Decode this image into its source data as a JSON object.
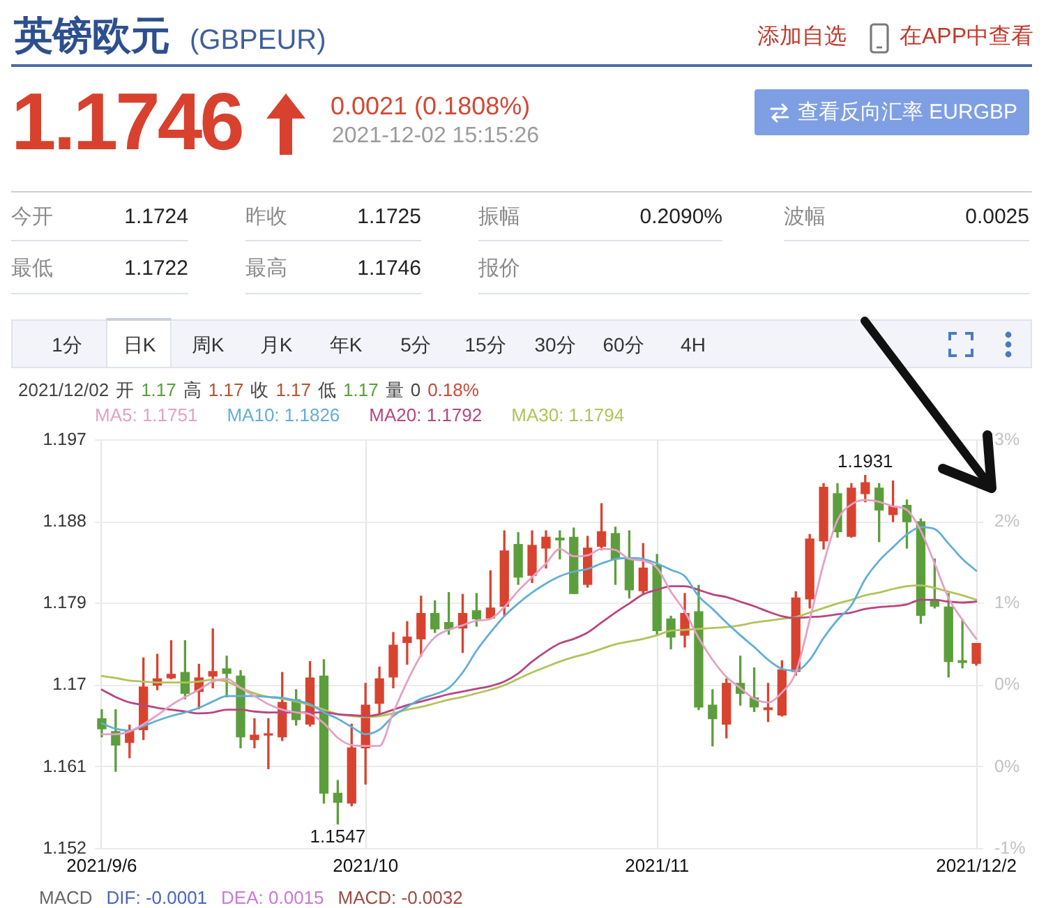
{
  "chart_data": {
    "type": "candlestick",
    "title": "英镑欧元",
    "subtitle": "(GBPEUR)",
    "categories": [
      "2021/9/6",
      null,
      null,
      null,
      null,
      null,
      null,
      null,
      null,
      null,
      null,
      null,
      null,
      null,
      null,
      null,
      null,
      null,
      null,
      "2021/10",
      null,
      null,
      null,
      null,
      null,
      null,
      null,
      null,
      null,
      null,
      null,
      null,
      null,
      null,
      null,
      null,
      null,
      null,
      null,
      null,
      "2021/11",
      null,
      null,
      null,
      null,
      null,
      null,
      null,
      null,
      null,
      null,
      null,
      null,
      null,
      null,
      null,
      null,
      null,
      null,
      null,
      null,
      null,
      null,
      "2021/12/2"
    ],
    "ohlc": [
      [
        1.1663,
        1.1673,
        1.1643,
        1.1652
      ],
      [
        1.1649,
        1.1673,
        1.1605,
        1.1634
      ],
      [
        1.1637,
        1.1656,
        1.162,
        1.165
      ],
      [
        1.1651,
        1.173,
        1.164,
        1.1698
      ],
      [
        1.17,
        1.1734,
        1.1695,
        1.1707
      ],
      [
        1.1708,
        1.1749,
        1.1707,
        1.1712
      ],
      [
        1.1714,
        1.1749,
        1.1685,
        1.1691
      ],
      [
        1.1693,
        1.1723,
        1.1674,
        1.1708
      ],
      [
        1.171,
        1.1762,
        1.1697,
        1.1715
      ],
      [
        1.1718,
        1.1732,
        1.1687,
        1.1713
      ],
      [
        1.171,
        1.1716,
        1.1631,
        1.1643
      ],
      [
        1.164,
        1.1663,
        1.1631,
        1.1645
      ],
      [
        1.1645,
        1.1663,
        1.1608,
        1.1646
      ],
      [
        1.1643,
        1.1714,
        1.1639,
        1.1681
      ],
      [
        1.1684,
        1.1695,
        1.1656,
        1.1662
      ],
      [
        1.1657,
        1.1726,
        1.1655,
        1.1708
      ],
      [
        1.171,
        1.1728,
        1.157,
        1.1581
      ],
      [
        1.1581,
        1.1595,
        1.1547,
        1.1571
      ],
      [
        1.157,
        1.1657,
        1.1567,
        1.1631
      ],
      [
        1.1631,
        1.1702,
        1.1591,
        1.1678
      ],
      [
        1.168,
        1.172,
        1.1666,
        1.1707
      ],
      [
        1.1709,
        1.1758,
        1.1697,
        1.1744
      ],
      [
        1.1747,
        1.177,
        1.1723,
        1.1753
      ],
      [
        1.1751,
        1.1798,
        1.1732,
        1.1779
      ],
      [
        1.1779,
        1.1793,
        1.1758,
        1.1762
      ],
      [
        1.1769,
        1.1802,
        1.1756,
        1.1762
      ],
      [
        1.1763,
        1.18,
        1.1736,
        1.1779
      ],
      [
        1.1782,
        1.1801,
        1.1765,
        1.1773
      ],
      [
        1.1774,
        1.1826,
        1.1773,
        1.1785
      ],
      [
        1.1787,
        1.187,
        1.1777,
        1.1848
      ],
      [
        1.1855,
        1.1868,
        1.1811,
        1.1819
      ],
      [
        1.1821,
        1.187,
        1.1813,
        1.1854
      ],
      [
        1.1851,
        1.187,
        1.1829,
        1.1863
      ],
      [
        1.1862,
        1.187,
        1.1839,
        1.186
      ],
      [
        1.1863,
        1.1873,
        1.1801,
        1.1801
      ],
      [
        1.1811,
        1.1864,
        1.1808,
        1.1851
      ],
      [
        1.1853,
        1.19,
        1.1849,
        1.1869
      ],
      [
        1.1867,
        1.1874,
        1.1811,
        1.1839
      ],
      [
        1.1839,
        1.187,
        1.1796,
        1.1805
      ],
      [
        1.1804,
        1.1856,
        1.1801,
        1.1829
      ],
      [
        1.1832,
        1.1844,
        1.1755,
        1.176
      ],
      [
        1.1773,
        1.1776,
        1.174,
        1.1753
      ],
      [
        1.1755,
        1.1801,
        1.1742,
        1.1779
      ],
      [
        1.1781,
        1.181,
        1.1673,
        1.1676
      ],
      [
        1.1678,
        1.1695,
        1.1633,
        1.1663
      ],
      [
        1.1657,
        1.1707,
        1.1642,
        1.1702
      ],
      [
        1.1702,
        1.1732,
        1.1678,
        1.1691
      ],
      [
        1.1686,
        1.1719,
        1.1671,
        1.1676
      ],
      [
        1.1673,
        1.1702,
        1.166,
        1.1675
      ],
      [
        1.1667,
        1.1727,
        1.1666,
        1.1717
      ],
      [
        1.1715,
        1.1803,
        1.1711,
        1.1796
      ],
      [
        1.1795,
        1.1866,
        1.1785,
        1.1861
      ],
      [
        1.1859,
        1.1922,
        1.185,
        1.1918
      ],
      [
        1.1911,
        1.1922,
        1.1863,
        1.1869
      ],
      [
        1.1864,
        1.1922,
        1.1863,
        1.1917
      ],
      [
        1.1911,
        1.1931,
        1.1902,
        1.1923
      ],
      [
        1.1917,
        1.1922,
        1.1858,
        1.1893
      ],
      [
        1.1888,
        1.1925,
        1.188,
        1.1897
      ],
      [
        1.1898,
        1.1904,
        1.1851,
        1.188
      ],
      [
        1.188,
        1.1883,
        1.1768,
        1.1777
      ],
      [
        1.1794,
        1.1839,
        1.1785,
        1.1787
      ],
      [
        1.1786,
        1.1801,
        1.1709,
        1.1726
      ],
      [
        1.1727,
        1.1772,
        1.1719,
        1.1725
      ],
      [
        1.1724,
        1.1746,
        1.1722,
        1.1746
      ]
    ],
    "colors": [
      "#5c9e3c",
      "#5c9e3c",
      "#d8432f",
      "#d8432f",
      "#d8432f",
      "#d8432f",
      "#5c9e3c",
      "#d8432f",
      "#d8432f",
      "#5c9e3c",
      "#5c9e3c",
      "#d8432f",
      "#d8432f",
      "#d8432f",
      "#5c9e3c",
      "#d8432f",
      "#5c9e3c",
      "#5c9e3c",
      "#d8432f",
      "#d8432f",
      "#d8432f",
      "#d8432f",
      "#d8432f",
      "#d8432f",
      "#5c9e3c",
      "#5c9e3c",
      "#d8432f",
      "#5c9e3c",
      "#d8432f",
      "#d8432f",
      "#5c9e3c",
      "#d8432f",
      "#d8432f",
      "#5c9e3c",
      "#5c9e3c",
      "#d8432f",
      "#d8432f",
      "#5c9e3c",
      "#5c9e3c",
      "#d8432f",
      "#5c9e3c",
      "#5c9e3c",
      "#d8432f",
      "#5c9e3c",
      "#5c9e3c",
      "#d8432f",
      "#5c9e3c",
      "#5c9e3c",
      "#d8432f",
      "#d8432f",
      "#d8432f",
      "#d8432f",
      "#d8432f",
      "#5c9e3c",
      "#d8432f",
      "#d8432f",
      "#5c9e3c",
      "#d8432f",
      "#5c9e3c",
      "#5c9e3c",
      "#5c9e3c",
      "#5c9e3c",
      "#5c9e3c",
      "#d8432f"
    ],
    "series": [
      {
        "name": "MA5: 1.1751",
        "type": "line",
        "color": "#e3a1c6",
        "values": [
          1.1646,
          1.1646,
          1.1649,
          1.1657,
          1.1667,
          1.1678,
          1.1687,
          1.1695,
          1.1704,
          1.1707,
          1.1697,
          1.1688,
          1.1679,
          1.1673,
          1.167,
          1.1668,
          1.1658,
          1.1642,
          1.1634,
          1.1633,
          1.1633,
          1.167,
          1.1704,
          1.1733,
          1.1753,
          1.1761,
          1.1766,
          1.1771,
          1.1773,
          1.1786,
          1.1804,
          1.1819,
          1.1834,
          1.185,
          1.1842,
          1.1843,
          1.185,
          1.1849,
          1.1839,
          1.1837,
          1.1829,
          1.1803,
          1.1781,
          1.1752,
          1.1728,
          1.1709,
          1.1697,
          1.1685,
          1.1681,
          1.1692,
          1.1714,
          1.1772,
          1.1834,
          1.1882,
          1.1899,
          1.1904,
          1.1902,
          1.1897,
          1.1893,
          1.187,
          1.1834,
          1.1796,
          1.1772,
          1.1751
        ]
      },
      {
        "name": "MA10: 1.1826",
        "type": "line",
        "color": "#62aed6",
        "values": [
          1.1658,
          1.1652,
          1.165,
          1.1655,
          1.1661,
          1.1666,
          1.167,
          1.1675,
          1.1682,
          1.1688,
          1.1688,
          1.1688,
          1.1687,
          1.1686,
          1.1683,
          1.1679,
          1.167,
          1.1663,
          1.1654,
          1.1646,
          1.1651,
          1.1666,
          1.1676,
          1.1685,
          1.169,
          1.1697,
          1.1714,
          1.1738,
          1.1758,
          1.1776,
          1.179,
          1.1802,
          1.1812,
          1.182,
          1.1825,
          1.1828,
          1.1834,
          1.1839,
          1.184,
          1.1839,
          1.1834,
          1.1827,
          1.182,
          1.1798,
          1.1784,
          1.1769,
          1.1755,
          1.1742,
          1.1728,
          1.1718,
          1.1716,
          1.1728,
          1.1752,
          1.1772,
          1.1788,
          1.1817,
          1.1837,
          1.1852,
          1.1866,
          1.1874,
          1.1872,
          1.1856,
          1.1839,
          1.1826
        ]
      },
      {
        "name": "MA20: 1.1792",
        "type": "line",
        "color": "#b8467f",
        "values": [
          1.1695,
          1.1687,
          1.1681,
          1.1678,
          1.1675,
          1.1673,
          1.1671,
          1.1669,
          1.167,
          1.1673,
          1.1673,
          1.1671,
          1.167,
          1.167,
          1.167,
          1.167,
          1.167,
          1.1668,
          1.1667,
          1.1666,
          1.1668,
          1.1673,
          1.1678,
          1.1682,
          1.1686,
          1.169,
          1.1693,
          1.1696,
          1.1699,
          1.1704,
          1.1713,
          1.1726,
          1.1737,
          1.1746,
          1.1751,
          1.1758,
          1.1769,
          1.178,
          1.179,
          1.18,
          1.1805,
          1.1809,
          1.1809,
          1.1805,
          1.18,
          1.1797,
          1.1792,
          1.1787,
          1.1781,
          1.1776,
          1.1774,
          1.1775,
          1.1776,
          1.1778,
          1.178,
          1.1784,
          1.1786,
          1.1787,
          1.1789,
          1.1794,
          1.1794,
          1.1792,
          1.1791,
          1.1792
        ]
      },
      {
        "name": "MA30: 1.1794",
        "type": "line",
        "color": "#b2c35a",
        "values": [
          1.171,
          1.1708,
          1.1705,
          1.1704,
          1.1703,
          1.1703,
          1.1703,
          1.1704,
          1.1706,
          1.1704,
          1.1697,
          1.1691,
          1.1687,
          1.1685,
          1.1682,
          1.1678,
          1.1673,
          1.1668,
          1.1666,
          1.1665,
          1.1666,
          1.1669,
          1.1673,
          1.1676,
          1.168,
          1.1684,
          1.1687,
          1.1691,
          1.1695,
          1.17,
          1.1707,
          1.1714,
          1.172,
          1.1726,
          1.1731,
          1.1735,
          1.174,
          1.1745,
          1.1748,
          1.1751,
          1.1755,
          1.176,
          1.1761,
          1.1762,
          1.1763,
          1.1764,
          1.1766,
          1.1769,
          1.1771,
          1.1773,
          1.1775,
          1.178,
          1.1785,
          1.179,
          1.1794,
          1.1799,
          1.1802,
          1.1806,
          1.1809,
          1.181,
          1.1807,
          1.1803,
          1.1799,
          1.1794
        ]
      }
    ],
    "ylim": [
      1.152,
      1.197
    ],
    "yticks": [
      1.152,
      1.161,
      1.17,
      1.179,
      1.188,
      1.197
    ],
    "y2lim": [
      -1.07,
      2.8
    ],
    "y2ticks": [
      {
        "value": -1.07,
        "label": "-1%"
      },
      {
        "value": -0.296,
        "label": "0%"
      },
      {
        "value": 0.478,
        "label": "0%"
      },
      {
        "value": 1.252,
        "label": "1%"
      },
      {
        "value": 2.026,
        "label": "2%"
      },
      {
        "value": 2.8,
        "label": "3%"
      }
    ],
    "grid": true,
    "legend": "top left",
    "annotations": [
      "添加自选",
      "在APP中查看",
      "1.1746",
      "0.0021 (0.1808%)",
      "2021-12-02 15:15:26",
      "查看反向汇率 EURGBP",
      "今开",
      "1.1724",
      "昨收",
      "1.1725",
      "振幅",
      "0.2090%",
      "波幅",
      "0.0025",
      "最低",
      "1.1722",
      "最高",
      "1.1746",
      "报价",
      "1分",
      "日K",
      "周K",
      "月K",
      "年K",
      "5分",
      "15分",
      "30分",
      "60分",
      "4H",
      "2021/12/02",
      "开",
      "1.17",
      "高",
      "1.17",
      "收",
      "1.17",
      "低",
      "1.17",
      "量",
      "0",
      "0.18%",
      "MACD",
      "DIF: -0.0001",
      "DEA: 0.0015",
      "MACD: -0.0032",
      {
        "text": "1.1931",
        "y": 1.1931
      },
      {
        "text": "1.1547",
        "y": 1.1547
      }
    ]
  }
}
